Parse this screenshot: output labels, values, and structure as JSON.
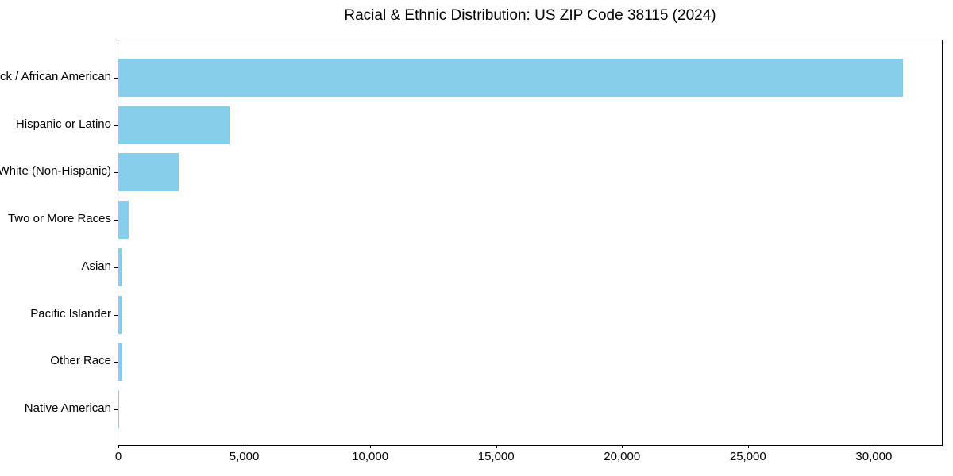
{
  "chart_data": {
    "type": "bar",
    "orientation": "horizontal",
    "title": "Racial & Ethnic Distribution: US ZIP Code 38115 (2024)",
    "xlabel": "",
    "ylabel": "",
    "categories": [
      "Black / African American",
      "Hispanic or Latino",
      "White (Non-Hispanic)",
      "Two or More Races",
      "Asian",
      "Pacific Islander",
      "Other Race",
      "Native American"
    ],
    "values": [
      31160,
      4405,
      2390,
      400,
      120,
      125,
      145,
      10
    ],
    "xlim": [
      0,
      32700
    ],
    "xticks": [
      0,
      5000,
      10000,
      15000,
      20000,
      25000,
      30000
    ],
    "xtick_labels": [
      "0",
      "5,000",
      "10,000",
      "15,000",
      "20,000",
      "25,000",
      "30,000"
    ],
    "bar_color": "#87CEEB",
    "grid": false,
    "legend": null,
    "plot_background": "#ffffff"
  }
}
